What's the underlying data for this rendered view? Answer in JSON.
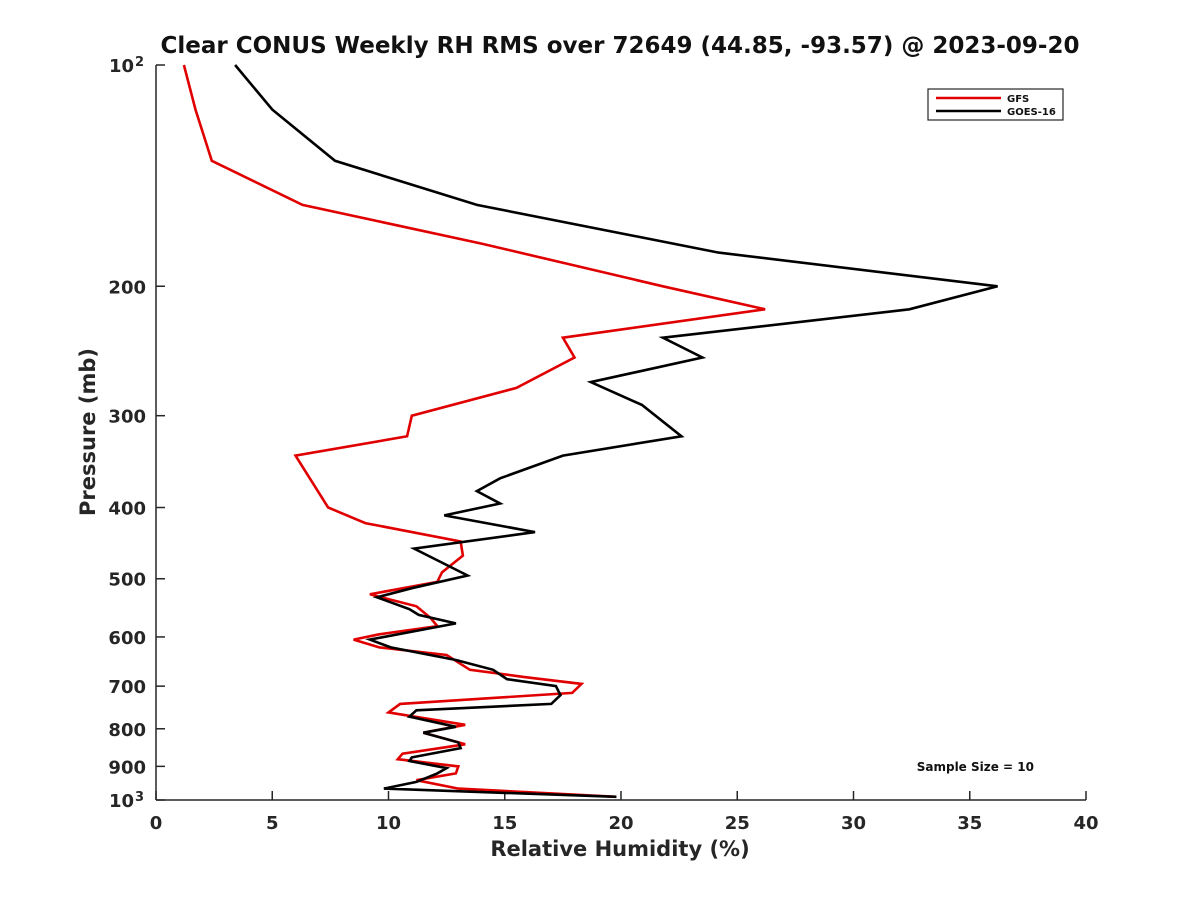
{
  "chart_data": {
    "type": "line",
    "title": "Clear CONUS Weekly RH RMS over 72649 (44.85, -93.57) @ 2023-09-20",
    "xlabel": "Relative Humidity (%)",
    "ylabel": "Pressure (mb)",
    "xlim": [
      0,
      40
    ],
    "ylim": [
      1000,
      100
    ],
    "yscale": "log",
    "y_reversed": true,
    "grid": false,
    "legend_position": "top-right",
    "x_ticks": [
      0,
      5,
      10,
      15,
      20,
      25,
      30,
      35,
      40
    ],
    "y_ticks": [
      {
        "value": 100,
        "label": "10",
        "exp": "2"
      },
      {
        "value": 200,
        "label": "200"
      },
      {
        "value": 300,
        "label": "300"
      },
      {
        "value": 400,
        "label": "400"
      },
      {
        "value": 500,
        "label": "500"
      },
      {
        "value": 600,
        "label": "600"
      },
      {
        "value": 700,
        "label": "700"
      },
      {
        "value": 800,
        "label": "800"
      },
      {
        "value": 900,
        "label": "900"
      },
      {
        "value": 1000,
        "label": "10",
        "exp": "3"
      }
    ],
    "annotation": "Sample Size = 10",
    "series": [
      {
        "name": "GFS",
        "color": "#e00000",
        "points": [
          [
            1.2,
            100
          ],
          [
            1.7,
            115
          ],
          [
            2.4,
            135
          ],
          [
            6.3,
            155
          ],
          [
            14,
            175
          ],
          [
            21.8,
            200
          ],
          [
            26.2,
            215
          ],
          [
            17.5,
            235
          ],
          [
            18,
            250
          ],
          [
            15.5,
            275
          ],
          [
            11,
            300
          ],
          [
            10.8,
            320
          ],
          [
            6,
            340
          ],
          [
            7.4,
            400
          ],
          [
            9,
            420
          ],
          [
            13.1,
            445
          ],
          [
            13.2,
            465
          ],
          [
            12.3,
            490
          ],
          [
            12.1,
            505
          ],
          [
            9.2,
            525
          ],
          [
            11.2,
            545
          ],
          [
            11.8,
            565
          ],
          [
            12.1,
            580
          ],
          [
            9.6,
            595
          ],
          [
            8.5,
            605
          ],
          [
            9.6,
            620
          ],
          [
            12.5,
            635
          ],
          [
            13.5,
            665
          ],
          [
            15.8,
            680
          ],
          [
            18.3,
            695
          ],
          [
            17.9,
            715
          ],
          [
            10.5,
            740
          ],
          [
            10,
            760
          ],
          [
            13.3,
            790
          ],
          [
            11.5,
            810
          ],
          [
            13.3,
            840
          ],
          [
            10.6,
            865
          ],
          [
            10.4,
            880
          ],
          [
            13,
            900
          ],
          [
            12.9,
            920
          ],
          [
            11.2,
            940
          ],
          [
            13,
            965
          ],
          [
            19.8,
            990
          ]
        ]
      },
      {
        "name": "GOES-16",
        "color": "#000000",
        "points": [
          [
            3.4,
            100
          ],
          [
            5,
            115
          ],
          [
            7.7,
            135
          ],
          [
            13.8,
            155
          ],
          [
            24.2,
            180
          ],
          [
            36.2,
            200
          ],
          [
            32.4,
            215
          ],
          [
            21.8,
            235
          ],
          [
            23.5,
            250
          ],
          [
            18.7,
            270
          ],
          [
            20.9,
            290
          ],
          [
            22.6,
            320
          ],
          [
            17.5,
            340
          ],
          [
            14.8,
            365
          ],
          [
            13.8,
            380
          ],
          [
            14.8,
            395
          ],
          [
            12.4,
            410
          ],
          [
            16.3,
            432
          ],
          [
            11.1,
            455
          ],
          [
            13.4,
            495
          ],
          [
            11,
            515
          ],
          [
            9.5,
            530
          ],
          [
            10.9,
            550
          ],
          [
            11.3,
            560
          ],
          [
            12.9,
            575
          ],
          [
            9.2,
            605
          ],
          [
            10.1,
            620
          ],
          [
            12.9,
            645
          ],
          [
            14.5,
            665
          ],
          [
            15.1,
            685
          ],
          [
            17.2,
            700
          ],
          [
            17.4,
            720
          ],
          [
            17,
            740
          ],
          [
            11.2,
            755
          ],
          [
            10.9,
            770
          ],
          [
            12.9,
            795
          ],
          [
            11.5,
            810
          ],
          [
            13,
            835
          ],
          [
            13.1,
            850
          ],
          [
            11,
            875
          ],
          [
            10.9,
            885
          ],
          [
            12.5,
            905
          ],
          [
            12.1,
            920
          ],
          [
            11.2,
            945
          ],
          [
            9.8,
            965
          ],
          [
            19.8,
            990
          ]
        ]
      }
    ]
  }
}
